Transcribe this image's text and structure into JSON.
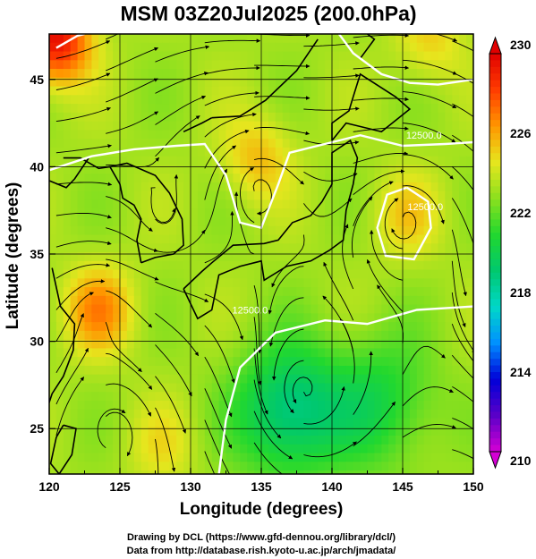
{
  "chart_data": {
    "type": "heatmap",
    "title": "MSM 03Z20Jul2025 (200.0hPa)",
    "xlabel": "Longitude (degrees)",
    "ylabel": "Latitude  (degrees)",
    "xlim": [
      120,
      150
    ],
    "ylim": [
      22.4,
      47.6
    ],
    "x_ticks": [
      "120",
      "125",
      "130",
      "135",
      "140",
      "145",
      "150"
    ],
    "y_ticks": [
      "25",
      "30",
      "35",
      "40",
      "45"
    ],
    "grid": true,
    "colorbar": {
      "range": [
        210,
        230
      ],
      "ticks": [
        "210",
        "214",
        "218",
        "222",
        "226",
        "230"
      ],
      "colors": [
        "#d400d4",
        "#5a00c8",
        "#0000d8",
        "#0090ff",
        "#00d8c8",
        "#00c86e",
        "#22d82e",
        "#8ce01e",
        "#e6e61e",
        "#ff9600",
        "#ff3c00",
        "#e00000"
      ]
    },
    "field_highs": [
      {
        "lon": 120.5,
        "lat": 47.3,
        "value": 229.5
      },
      {
        "lon": 123.5,
        "lat": 31.8,
        "value": 226.5
      },
      {
        "lon": 134.7,
        "lat": 40.5,
        "value": 225.5
      },
      {
        "lon": 145.3,
        "lat": 37.2,
        "value": 225.0
      },
      {
        "lon": 147.0,
        "lat": 47.3,
        "value": 225.0
      },
      {
        "lon": 128.0,
        "lat": 24.0,
        "value": 224.5
      }
    ],
    "field_lows": [
      {
        "lon": 137.0,
        "lat": 26.0,
        "value": 218.5
      },
      {
        "lon": 143.5,
        "lat": 26.5,
        "value": 220.5
      }
    ],
    "background_value": 223.2,
    "contour_labels": [
      "12500.0",
      "12500.0",
      "12500.0"
    ],
    "credits": [
      "Drawing by DCL (https://www.gfd-dennou.org/library/dcl/)",
      "Data from http://database.rish.kyoto-u.ac.jp/arch/jmadata/"
    ]
  }
}
